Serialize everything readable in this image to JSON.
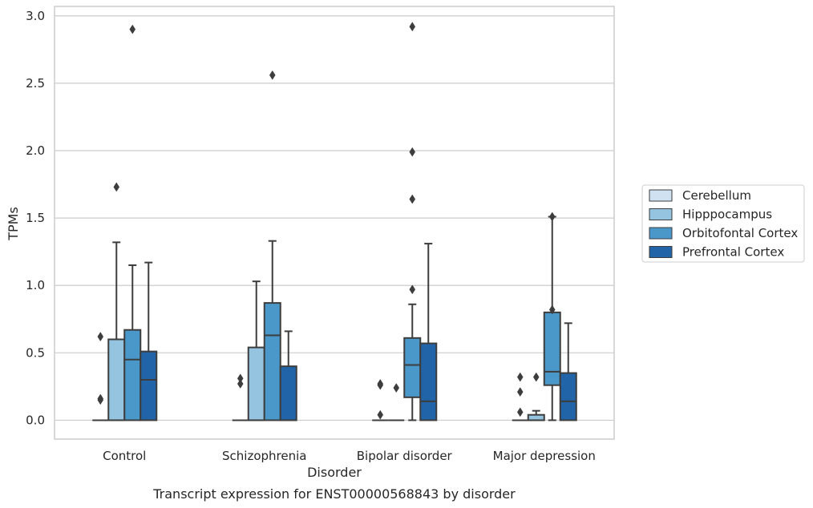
{
  "chart_data": {
    "type": "box",
    "title": "Transcript expression for ENST00000568843 by disorder",
    "xlabel": "Disorder",
    "ylabel": "TPMs",
    "ylim": [
      -0.14,
      3.07
    ],
    "yticks": [
      "0.0",
      "0.5",
      "1.0",
      "1.5",
      "2.0",
      "2.5",
      "3.0"
    ],
    "grid": "horizontal",
    "legend_position": "right",
    "categories": [
      "Control",
      "Schizophrenia",
      "Bipolar disorder",
      "Major depression"
    ],
    "series": [
      {
        "name": "Cerebellum",
        "color": "#d0e1f2",
        "boxes": [
          {
            "q1": 0,
            "median": 0,
            "q3": 0,
            "whisker_low": 0,
            "whisker_high": 0,
            "outliers": [
              0.62,
              0.16,
              0.15
            ]
          },
          {
            "q1": 0,
            "median": 0,
            "q3": 0,
            "whisker_low": 0,
            "whisker_high": 0,
            "outliers": [
              0.31,
              0.27
            ]
          },
          {
            "q1": 0,
            "median": 0,
            "q3": 0,
            "whisker_low": 0,
            "whisker_high": 0,
            "outliers": [
              0.27,
              0.26,
              0.04
            ]
          },
          {
            "q1": 0,
            "median": 0,
            "q3": 0,
            "whisker_low": 0,
            "whisker_high": 0,
            "outliers": [
              0.32,
              0.21,
              0.06
            ]
          }
        ]
      },
      {
        "name": "Hipppocampus",
        "color": "#94c4df",
        "boxes": [
          {
            "q1": 0,
            "median": 0,
            "q3": 0.6,
            "whisker_low": 0,
            "whisker_high": 1.32,
            "outliers": [
              1.73
            ]
          },
          {
            "q1": 0,
            "median": 0,
            "q3": 0.54,
            "whisker_low": 0,
            "whisker_high": 1.03,
            "outliers": []
          },
          {
            "q1": 0,
            "median": 0,
            "q3": 0,
            "whisker_low": 0,
            "whisker_high": 0,
            "outliers": [
              0.24
            ]
          },
          {
            "q1": 0,
            "median": 0,
            "q3": 0.04,
            "whisker_low": 0,
            "whisker_high": 0.07,
            "outliers": [
              0.32
            ]
          }
        ]
      },
      {
        "name": "Orbitofontal Cortex",
        "color": "#4a98c9",
        "boxes": [
          {
            "q1": 0,
            "median": 0.45,
            "q3": 0.67,
            "whisker_low": 0,
            "whisker_high": 1.15,
            "outliers": [
              2.9
            ]
          },
          {
            "q1": 0,
            "median": 0.63,
            "q3": 0.87,
            "whisker_low": 0,
            "whisker_high": 1.33,
            "outliers": [
              2.56
            ]
          },
          {
            "q1": 0.17,
            "median": 0.41,
            "q3": 0.61,
            "whisker_low": 0,
            "whisker_high": 0.86,
            "outliers": [
              2.92,
              1.99,
              1.64,
              0.97
            ]
          },
          {
            "q1": 0.26,
            "median": 0.36,
            "q3": 0.8,
            "whisker_low": 0,
            "whisker_high": 1.51,
            "outliers": [
              1.51,
              0.82
            ]
          }
        ]
      },
      {
        "name": "Prefrontal Cortex",
        "color": "#2264a8",
        "boxes": [
          {
            "q1": 0,
            "median": 0.3,
            "q3": 0.51,
            "whisker_low": 0,
            "whisker_high": 1.17,
            "outliers": []
          },
          {
            "q1": 0,
            "median": 0,
            "q3": 0.4,
            "whisker_low": 0,
            "whisker_high": 0.66,
            "outliers": []
          },
          {
            "q1": 0,
            "median": 0.14,
            "q3": 0.57,
            "whisker_low": 0,
            "whisker_high": 1.31,
            "outliers": []
          },
          {
            "q1": 0,
            "median": 0.14,
            "q3": 0.35,
            "whisker_low": 0,
            "whisker_high": 0.72,
            "outliers": []
          }
        ]
      }
    ]
  }
}
